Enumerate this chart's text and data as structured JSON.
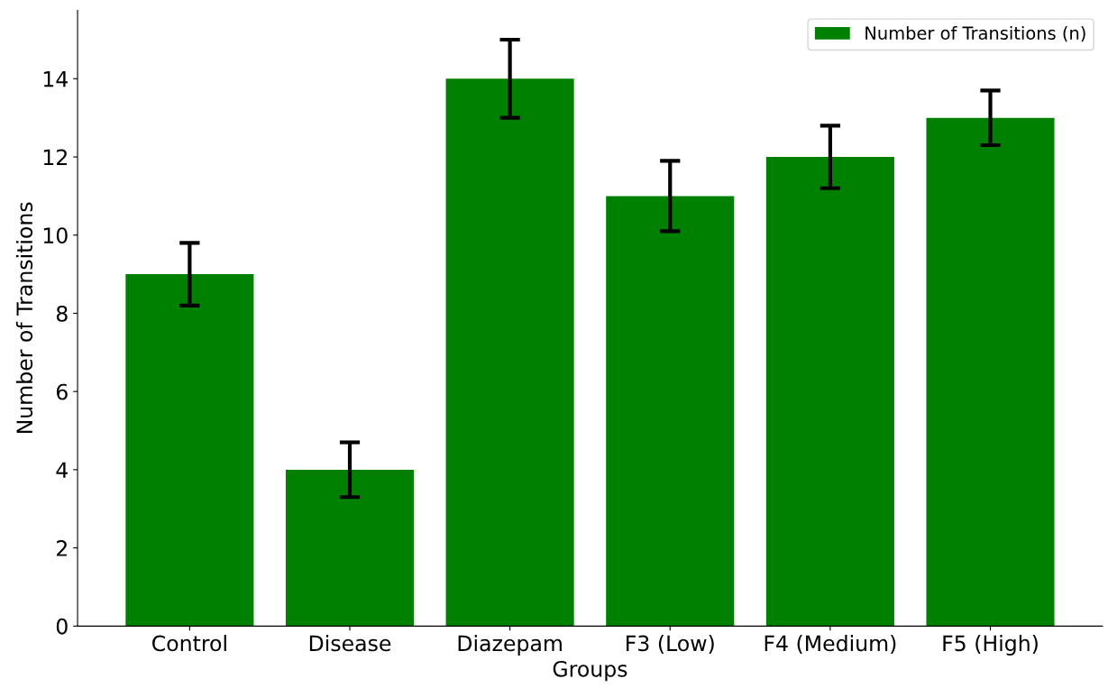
{
  "chart_data": {
    "type": "bar",
    "xlabel": "Groups",
    "ylabel": "Number of Transitions",
    "categories": [
      "Control",
      "Disease",
      "Diazepam",
      "F3 (Low)",
      "F4 (Medium)",
      "F5 (High)"
    ],
    "series": [
      {
        "name": "Number of Transitions (n)",
        "color": "#008000",
        "values": [
          9,
          4,
          14,
          11,
          12,
          13
        ],
        "errors": [
          0.8,
          0.7,
          1.0,
          0.9,
          0.8,
          0.7
        ]
      }
    ],
    "ylim": [
      0,
      15.75
    ],
    "yticks": [
      0,
      2,
      4,
      6,
      8,
      10,
      12,
      14
    ],
    "grid": false,
    "legend": "top right"
  }
}
